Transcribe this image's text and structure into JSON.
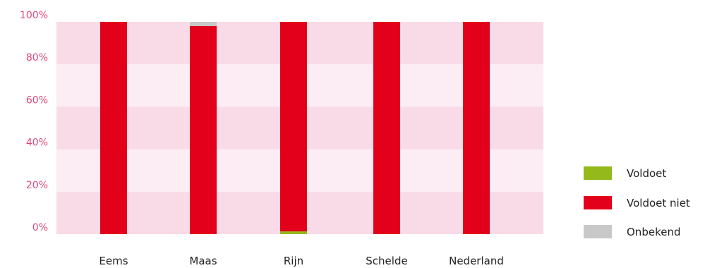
{
  "chart_data": {
    "type": "bar",
    "stacked": true,
    "categories": [
      "Eems",
      "Maas",
      "Rijn",
      "Schelde",
      "Nederland"
    ],
    "series": [
      {
        "name": "Voldoet",
        "color": "#93b91b",
        "values": [
          0,
          0,
          1.3,
          0,
          0
        ]
      },
      {
        "name": "Voldoet niet",
        "color": "#e3001b",
        "values": [
          100,
          98,
          98.7,
          100,
          100
        ]
      },
      {
        "name": "Onbekend",
        "color": "#c8c8c8",
        "values": [
          0,
          2,
          0,
          0,
          0
        ]
      }
    ],
    "ylim": [
      0,
      100
    ],
    "yticks": [
      "0%",
      "20%",
      "40%",
      "60%",
      "80%",
      "100%"
    ],
    "ytick_values": [
      0,
      20,
      40,
      60,
      80,
      100
    ],
    "band_colors": [
      "#f9dbe7",
      "#fcecf3"
    ],
    "legend_position": "right"
  }
}
